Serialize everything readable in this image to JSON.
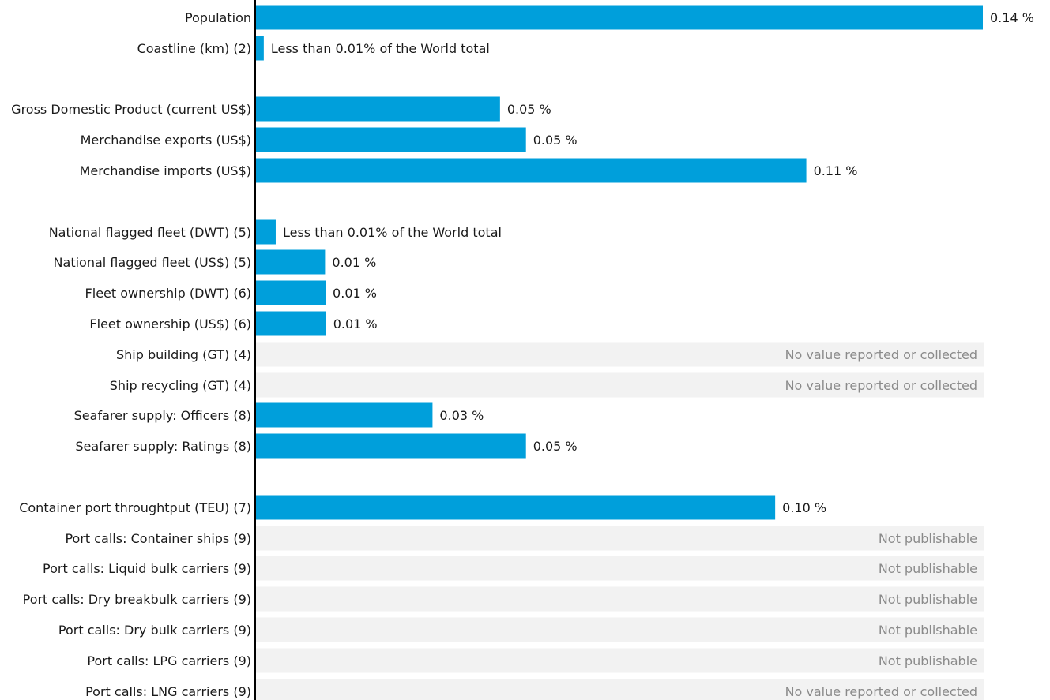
{
  "chart_data": {
    "type": "bar",
    "orientation": "horizontal",
    "colors": {
      "bar": "#009fdb",
      "na_background": "#f2f2f2",
      "axis": "#000000"
    },
    "groups": [
      {
        "rows": [
          {
            "category": "Population",
            "value": 0.14,
            "label": "0.14 %"
          },
          {
            "category": "Coastline (km) (2)",
            "value": 0.0015,
            "label": "Less than 0.01% of the World total"
          }
        ]
      },
      {
        "rows": [
          {
            "category": "Gross Domestic Product (current US$)",
            "value": 0.047,
            "label": "0.05 %"
          },
          {
            "category": "Merchandise exports (US$)",
            "value": 0.052,
            "label": "0.05 %"
          },
          {
            "category": "Merchandise imports (US$)",
            "value": 0.106,
            "label": "0.11 %"
          }
        ]
      },
      {
        "rows": [
          {
            "category": "National flagged fleet (DWT) (5)",
            "value": 0.0038,
            "label": "Less than 0.01% of the World total"
          },
          {
            "category": "National flagged fleet (US$) (5)",
            "value": 0.0133,
            "label": "0.01 %"
          },
          {
            "category": "Fleet ownership (DWT) (6)",
            "value": 0.0134,
            "label": "0.01 %"
          },
          {
            "category": "Fleet ownership (US$) (6)",
            "value": 0.0135,
            "label": "0.01 %"
          },
          {
            "category": "Ship building (GT) (4)",
            "value": null,
            "label": "No value reported or collected"
          },
          {
            "category": "Ship recycling (GT) (4)",
            "value": null,
            "label": "No value reported or collected"
          },
          {
            "category": "Seafarer supply: Officers (8)",
            "value": 0.034,
            "label": "0.03 %"
          },
          {
            "category": "Seafarer supply: Ratings (8)",
            "value": 0.052,
            "label": "0.05 %"
          }
        ]
      },
      {
        "rows": [
          {
            "category": "Container port throughtput (TEU) (7)",
            "value": 0.1,
            "label": "0.10 %"
          },
          {
            "category": "Port calls: Container ships (9)",
            "value": null,
            "label": "Not publishable"
          },
          {
            "category": "Port calls: Liquid bulk carriers (9)",
            "value": null,
            "label": "Not publishable"
          },
          {
            "category": "Port calls: Dry breakbulk carriers (9)",
            "value": null,
            "label": "Not publishable"
          },
          {
            "category": "Port calls: Dry bulk carriers (9)",
            "value": null,
            "label": "Not publishable"
          },
          {
            "category": "Port calls: LPG carriers (9)",
            "value": null,
            "label": "Not publishable"
          },
          {
            "category": "Port calls: LNG carriers (9)",
            "value": null,
            "label": "No value reported or collected"
          }
        ]
      }
    ],
    "xlim": [
      0,
      0.14
    ]
  }
}
